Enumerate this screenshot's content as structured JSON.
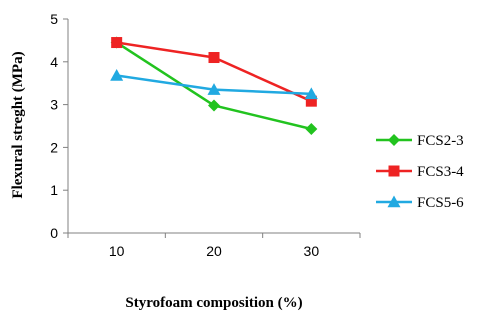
{
  "chart_data": {
    "type": "line",
    "xlabel": "Styrofoam composition (%)",
    "ylabel": "Flexural streght (MPa)",
    "x": [
      10,
      20,
      30
    ],
    "xlim": [
      5,
      35
    ],
    "ylim": [
      0,
      5
    ],
    "yticks": [
      0,
      1,
      2,
      3,
      4,
      5
    ],
    "grid": false,
    "legend_position": "right",
    "series": [
      {
        "name": "FCS2-3",
        "values": [
          4.45,
          2.98,
          2.43
        ],
        "color": "#22c31f",
        "marker": "diamond"
      },
      {
        "name": "FCS3-4",
        "values": [
          4.45,
          4.1,
          3.08
        ],
        "color": "#ee2323",
        "marker": "square"
      },
      {
        "name": "FCS5-6",
        "values": [
          3.68,
          3.35,
          3.25
        ],
        "color": "#21a9e1",
        "marker": "triangle"
      }
    ]
  }
}
